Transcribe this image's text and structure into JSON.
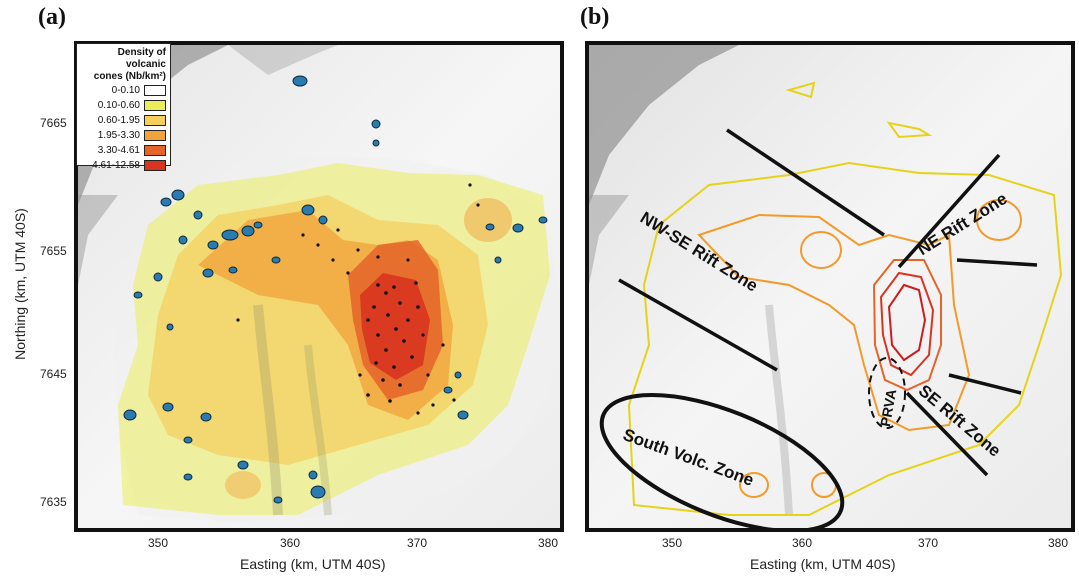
{
  "panels": {
    "a": {
      "label": "(a)",
      "legend": {
        "title_line1": "Density of volcanic",
        "title_line2": "cones (Nb/km²)",
        "classes": [
          {
            "range": "0-0.10",
            "color": "#ffffff"
          },
          {
            "range": "0.10-0.60",
            "color": "#ecec5c"
          },
          {
            "range": "0.60-1.95",
            "color": "#f5cf5c"
          },
          {
            "range": "1.95-3.30",
            "color": "#f2a23a"
          },
          {
            "range": "3.30-4.61",
            "color": "#e5642a"
          },
          {
            "range": "4.61-12.58",
            "color": "#d8341f"
          }
        ]
      }
    },
    "b": {
      "label": "(b)",
      "zones": {
        "nw_se": "NW-SE Rift Zone",
        "ne": "NE Rift Zone",
        "se": "SE Rift Zone",
        "south": "South Volc. Zone",
        "prva": "PRVA"
      }
    }
  },
  "axes": {
    "x_title": "Easting (km, UTM 40S)",
    "y_title": "Northing (km, UTM 40S)",
    "x_ticks": [
      "350",
      "360",
      "370",
      "380"
    ],
    "y_ticks": [
      "7665",
      "7655",
      "7645",
      "7635"
    ]
  }
}
